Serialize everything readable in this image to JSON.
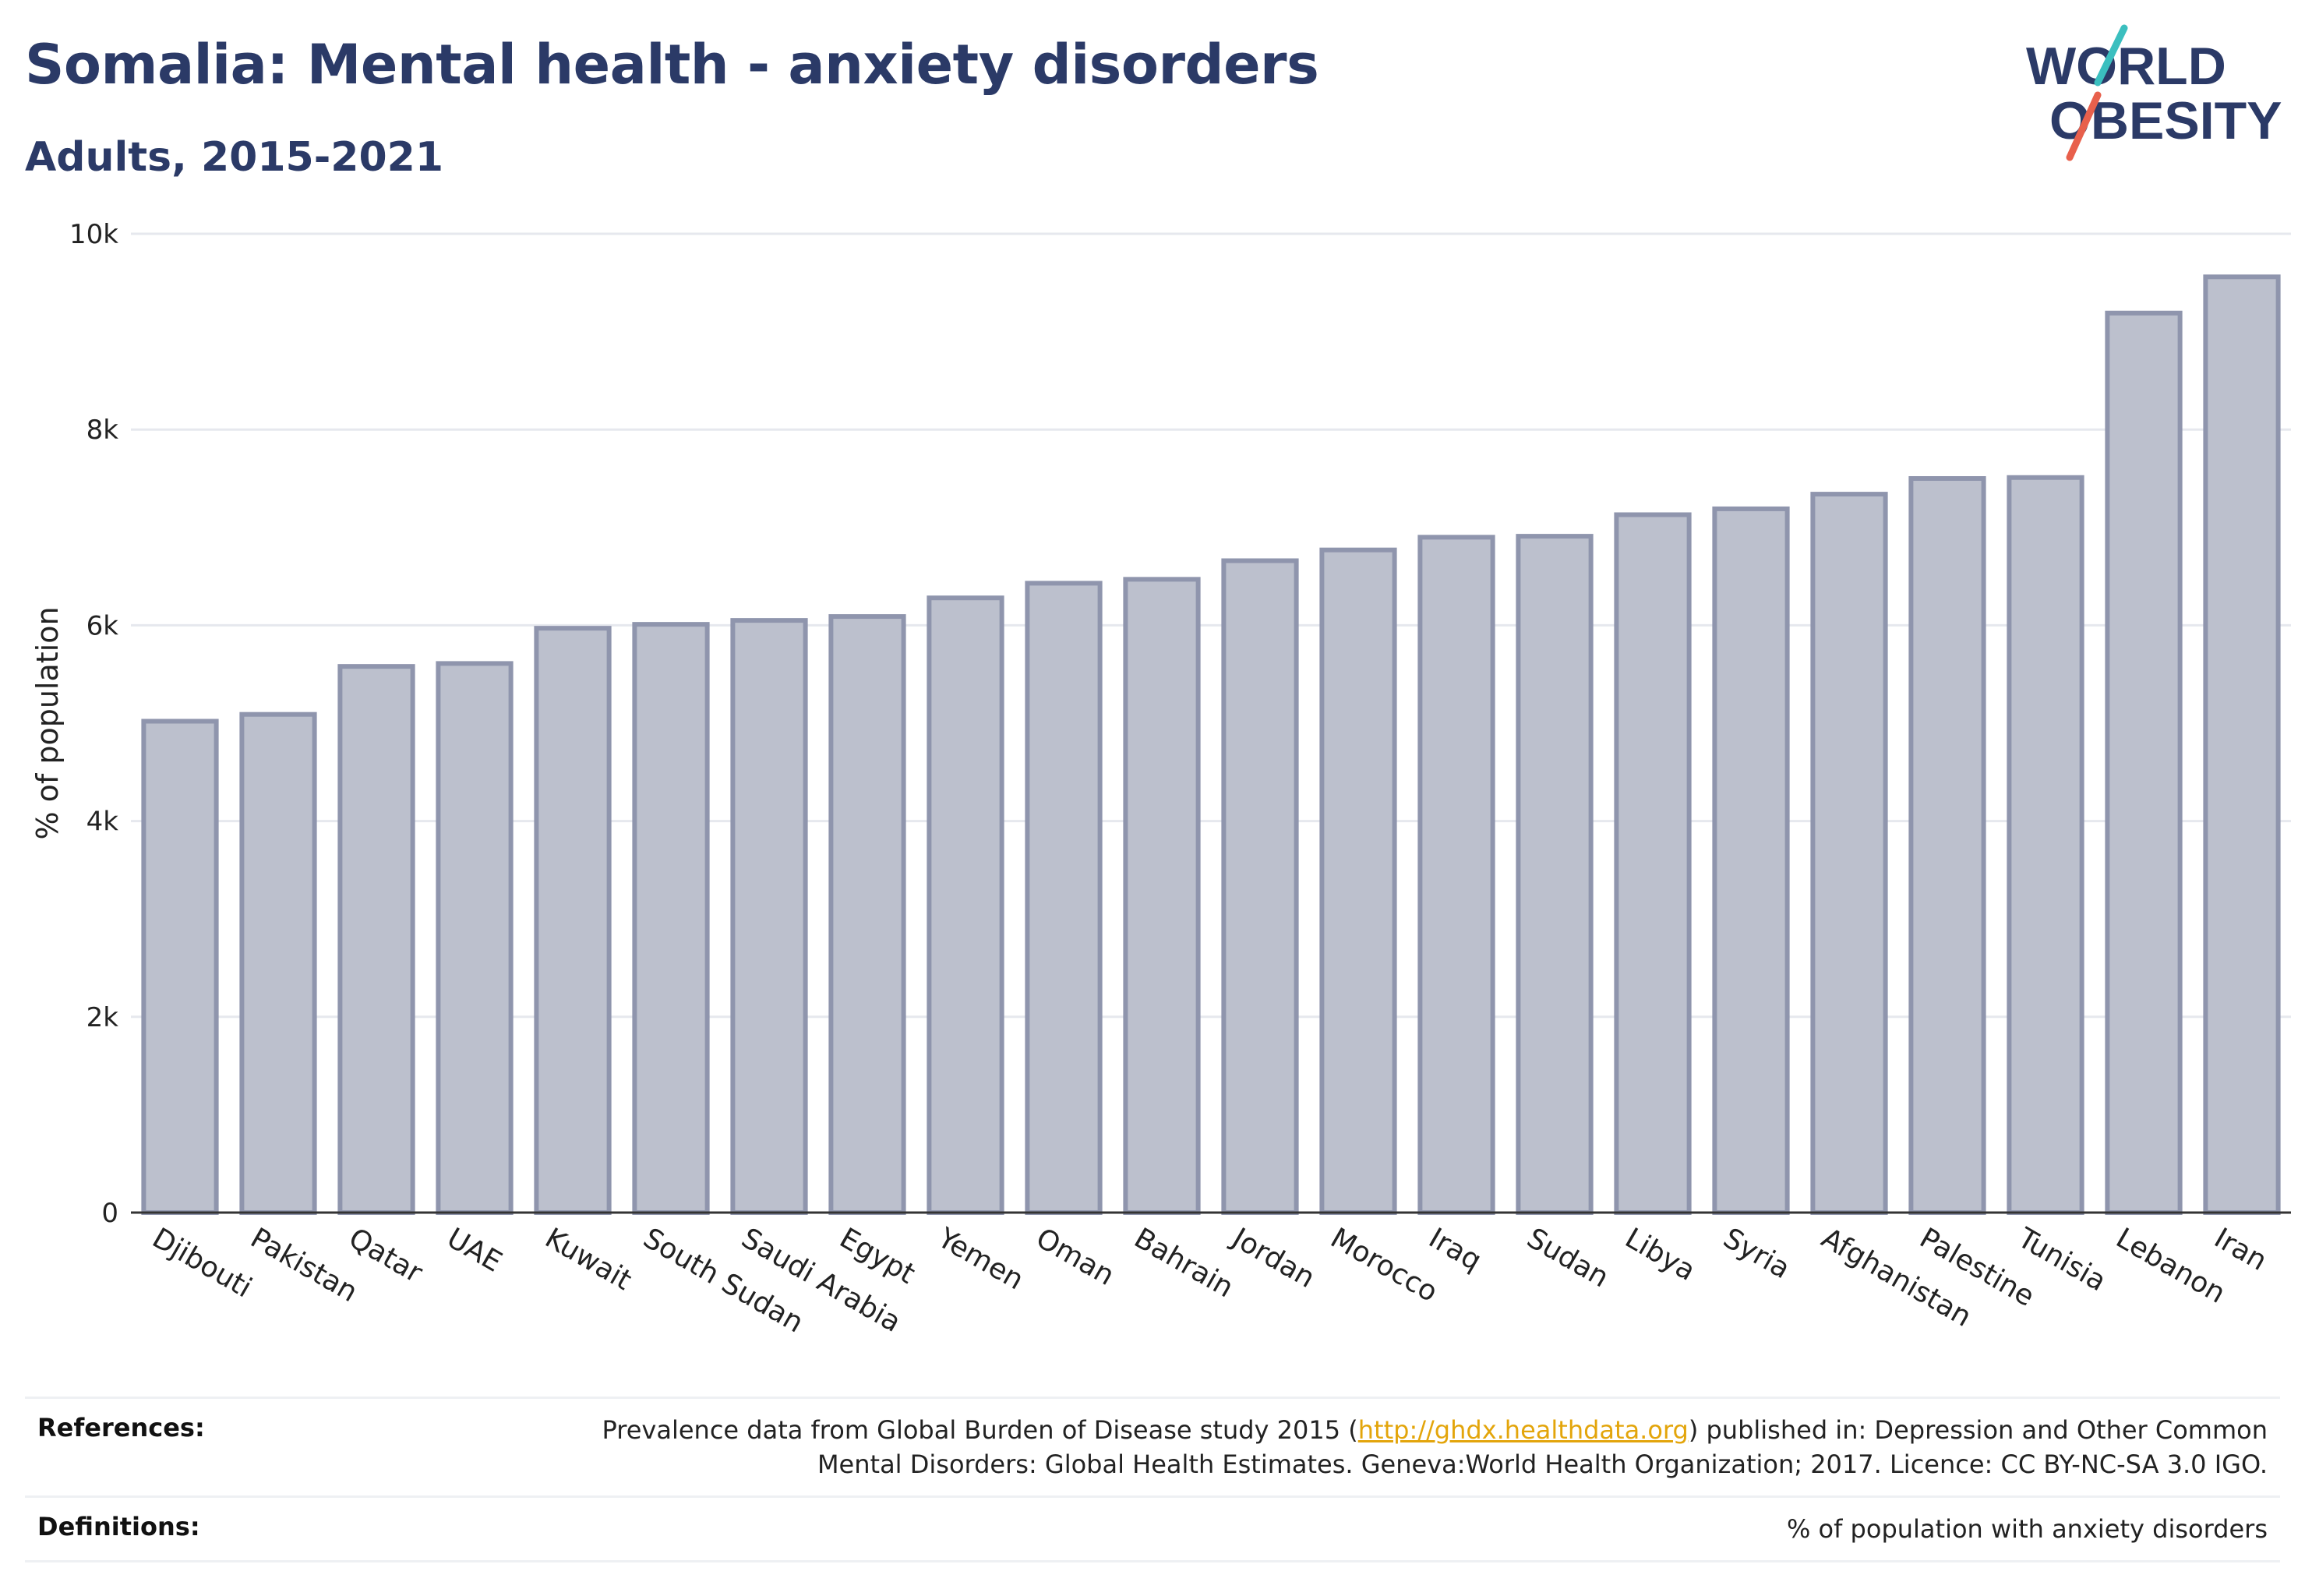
{
  "header": {
    "title": "Somalia: Mental health - anxiety disorders",
    "subtitle": "Adults, 2015-2021"
  },
  "logo": {
    "line1": "WORLD",
    "line2": "OBESITY",
    "text_color": "#2b3a67",
    "slash_colors": [
      "#3bbfbf",
      "#e8604c"
    ]
  },
  "chart_data": {
    "type": "bar",
    "categories": [
      "Djibouti",
      "Pakistan",
      "Qatar",
      "UAE",
      "Kuwait",
      "South Sudan",
      "Saudi Arabia",
      "Egypt",
      "Yemen",
      "Oman",
      "Bahrain",
      "Jordan",
      "Morocco",
      "Iraq",
      "Sudan",
      "Libya",
      "Syria",
      "Afghanistan",
      "Palestine",
      "Tunisia",
      "Lebanon",
      "Iran"
    ],
    "values": [
      5020,
      5090,
      5580,
      5610,
      5970,
      6010,
      6050,
      6090,
      6280,
      6430,
      6470,
      6660,
      6770,
      6900,
      6910,
      7130,
      7190,
      7340,
      7500,
      7510,
      9190,
      9560
    ],
    "title": "Somalia: Mental health - anxiety disorders",
    "subtitle": "Adults, 2015-2021",
    "xlabel": "",
    "ylabel": "% of population",
    "ylim": [
      0,
      10000
    ],
    "yticks": [
      0,
      2000,
      4000,
      6000,
      8000,
      10000
    ],
    "ytick_labels": [
      "0",
      "2k",
      "4k",
      "6k",
      "8k",
      "10k"
    ],
    "grid": true,
    "bar_fill": "#bcc0cd",
    "bar_stroke": "#8f95ad",
    "gridline_color": "#e6e8ee"
  },
  "references": {
    "label": "References:",
    "text_before": "Prevalence data from Global Burden of Disease study 2015 (",
    "link": "http://ghdx.healthdata.org",
    "text_after_line1": ") published in: Depression and Other Common",
    "text_line2": "Mental Disorders: Global Health Estimates. Geneva:World Health Organization; 2017. Licence: CC BY-NC-SA 3.0 IGO."
  },
  "definitions": {
    "label": "Definitions:",
    "text": "% of population with anxiety disorders"
  }
}
